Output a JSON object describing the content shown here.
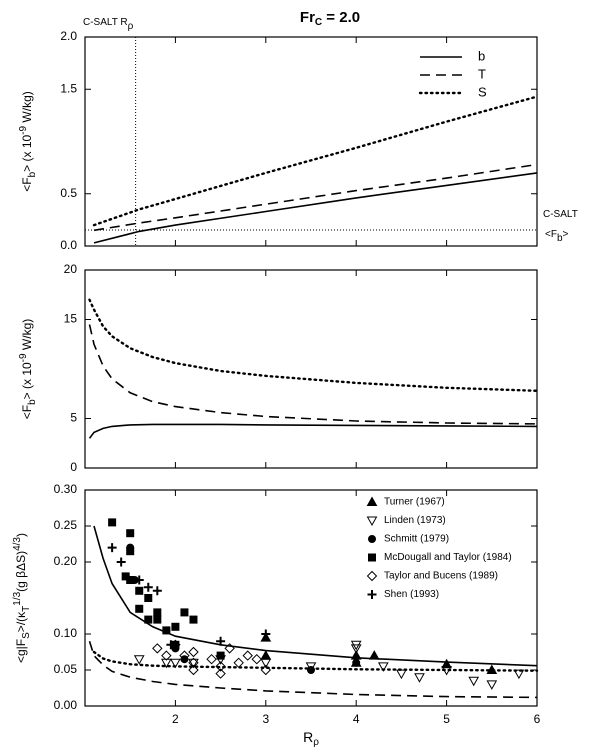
{
  "chart_data": [
    {
      "type": "line",
      "title": [
        {
          "text": "Fr"
        },
        {
          "text": "C",
          "shift": "sub"
        },
        {
          "text": " = 2.0"
        }
      ],
      "ylabel": [
        {
          "text": "<F"
        },
        {
          "text": "b",
          "shift": "sub"
        },
        {
          "text": ">  (x 10"
        },
        {
          "text": "-9",
          "shift": "sup"
        },
        {
          "text": "   W/kg)"
        }
      ],
      "xlim": [
        1,
        6
      ],
      "ylim": [
        0,
        2
      ],
      "yticks": [
        {
          "value": 0,
          "label": "0.0"
        },
        {
          "value": 0.5,
          "label": "0.5"
        },
        {
          "value": 1.5,
          "label": "1.5"
        },
        {
          "value": 2,
          "label": "2.0"
        }
      ],
      "legend": "upper right",
      "grid": false,
      "vline": {
        "x": 1.56,
        "label": [
          {
            "text": "C-SALT R"
          },
          {
            "text": "ρ",
            "shift": "sub"
          }
        ]
      },
      "hline": {
        "y": 0.153,
        "label": [
          {
            "text": "C-SALT"
          }
        ],
        "label2": [
          {
            "text": "<F"
          },
          {
            "text": "b",
            "shift": "sub"
          },
          {
            "text": ">"
          }
        ]
      },
      "x": [
        1.1,
        1.6,
        2,
        3,
        4,
        5,
        6
      ],
      "series": [
        {
          "name": "b",
          "color": "#000000",
          "dash": "solid",
          "values": [
            0.03,
            0.14,
            0.2,
            0.33,
            0.46,
            0.58,
            0.7
          ]
        },
        {
          "name": "T",
          "color": "#000000",
          "dash": "dashed",
          "values": [
            0.15,
            0.22,
            0.27,
            0.4,
            0.53,
            0.65,
            0.78
          ]
        },
        {
          "name": "S",
          "color": "#000000",
          "dash": "dotted",
          "values": [
            0.2,
            0.35,
            0.45,
            0.7,
            0.94,
            1.19,
            1.43
          ]
        }
      ]
    },
    {
      "type": "line",
      "ylabel": [
        {
          "text": "<F"
        },
        {
          "text": "b",
          "shift": "sub"
        },
        {
          "text": ">  (x 10"
        },
        {
          "text": "-9",
          "shift": "sup"
        },
        {
          "text": "   W/kg)"
        }
      ],
      "xlim": [
        1,
        6
      ],
      "ylim": [
        0,
        20
      ],
      "yticks": [
        0,
        5,
        15,
        20
      ],
      "grid": false,
      "x": [
        1.05,
        1.1,
        1.2,
        1.3,
        1.5,
        1.75,
        2,
        2.5,
        3,
        4,
        5,
        6
      ],
      "series": [
        {
          "color": "#000000",
          "dash": "solid",
          "values": [
            3.0,
            3.6,
            4.0,
            4.2,
            4.35,
            4.4,
            4.4,
            4.4,
            4.35,
            4.3,
            4.25,
            4.2
          ]
        },
        {
          "color": "#000000",
          "dash": "dashed",
          "values": [
            14.5,
            12.5,
            10.3,
            9.0,
            7.6,
            6.7,
            6.2,
            5.6,
            5.2,
            4.75,
            4.55,
            4.45
          ]
        },
        {
          "color": "#000000",
          "dash": "dotted",
          "values": [
            17,
            16,
            14.3,
            13.3,
            12.1,
            11.2,
            10.6,
            9.8,
            9.3,
            8.6,
            8.1,
            7.8
          ]
        }
      ]
    },
    {
      "type": "line",
      "ylabel": [
        {
          "text": "<g|F"
        },
        {
          "text": "S",
          "shift": "sub"
        },
        {
          "text": ">/(κ"
        },
        {
          "text": "T",
          "shift": "sub"
        },
        {
          "text": "1/3",
          "shift": "sup"
        },
        {
          "text": "(g βΔS)"
        },
        {
          "text": "4/3",
          "shift": "sup"
        },
        {
          "text": ")"
        }
      ],
      "xlabel": [
        {
          "text": "R"
        },
        {
          "text": "ρ",
          "shift": "sub"
        }
      ],
      "xlim": [
        1,
        6
      ],
      "xticks": [
        2,
        3,
        4,
        5,
        6
      ],
      "ylim": [
        0,
        0.3
      ],
      "yticks": [
        {
          "value": 0,
          "label": "0.00"
        },
        {
          "value": 0.05,
          "label": "0.05"
        },
        {
          "value": 0.1,
          "label": "0.10"
        },
        {
          "value": 0.2,
          "label": "0.20"
        },
        {
          "value": 0.25,
          "label": "0.25"
        },
        {
          "value": 0.3,
          "label": "0.30"
        }
      ],
      "legend": "upper right",
      "grid": false,
      "x": [
        1.05,
        1.1,
        1.2,
        1.3,
        1.5,
        1.75,
        2,
        2.5,
        3,
        4,
        5,
        6
      ],
      "series": [
        {
          "color": "#000000",
          "dash": "solid",
          "values": [
            null,
            0.25,
            0.205,
            0.17,
            0.13,
            0.11,
            0.097,
            0.085,
            0.077,
            0.067,
            0.061,
            0.056
          ]
        },
        {
          "color": "#000000",
          "dash": "dotted",
          "values": [
            null,
            0.075,
            0.066,
            0.062,
            0.058,
            0.056,
            0.055,
            0.054,
            0.053,
            0.051,
            0.05,
            0.049
          ]
        },
        {
          "color": "#000000",
          "dash": "dashed",
          "values": [
            0.09,
            0.07,
            0.057,
            0.048,
            0.04,
            0.034,
            0.03,
            0.025,
            0.021,
            0.016,
            0.013,
            0.012
          ]
        },
        {
          "type": "scatter",
          "name": "Turner (1967)",
          "color": "#000000",
          "marker": "triangle-up",
          "filled": true,
          "x": [
            3.0,
            3.0,
            4.0,
            4.2,
            4.0,
            5.0,
            5.5
          ],
          "values": [
            0.095,
            0.07,
            0.07,
            0.07,
            0.06,
            0.058,
            0.05
          ]
        },
        {
          "type": "scatter",
          "name": "Linden (1973)",
          "color": "#000000",
          "marker": "triangle-down",
          "filled": false,
          "x": [
            1.6,
            1.9,
            2.0,
            2.2,
            2.5,
            3.0,
            3.5,
            4.0,
            4.0,
            4.3,
            4.5,
            4.7,
            5.0,
            5.3,
            5.5,
            5.8
          ],
          "values": [
            0.065,
            0.06,
            0.06,
            0.06,
            0.065,
            0.06,
            0.055,
            0.085,
            0.08,
            0.055,
            0.045,
            0.04,
            0.05,
            0.035,
            0.03,
            0.045
          ]
        },
        {
          "type": "scatter",
          "name": "Schmitt (1979)",
          "color": "#000000",
          "marker": "circle",
          "filled": true,
          "x": [
            1.5,
            1.55,
            1.9,
            2.0,
            2.1,
            3.5,
            4.0
          ],
          "values": [
            0.22,
            0.175,
            0.105,
            0.08,
            0.065,
            0.05,
            0.06
          ]
        },
        {
          "type": "scatter",
          "name": "McDougall and Taylor (1984)",
          "color": "#000000",
          "marker": "square",
          "filled": true,
          "x": [
            1.3,
            1.5,
            1.5,
            1.45,
            1.5,
            1.6,
            1.7,
            1.8,
            1.8,
            1.7,
            1.9,
            2.0,
            2.1,
            2.2,
            1.6,
            2.0,
            2.5
          ],
          "values": [
            0.255,
            0.24,
            0.215,
            0.18,
            0.175,
            0.16,
            0.15,
            0.13,
            0.12,
            0.12,
            0.105,
            0.11,
            0.13,
            0.12,
            0.135,
            0.085,
            0.07
          ]
        },
        {
          "type": "scatter",
          "name": "Taylor and Bucens (1989)",
          "color": "#000000",
          "marker": "diamond",
          "filled": false,
          "x": [
            1.8,
            1.9,
            2.0,
            2.1,
            2.2,
            2.2,
            2.4,
            2.5,
            2.6,
            2.7,
            2.8,
            2.5,
            2.2,
            2.9,
            3.0
          ],
          "values": [
            0.08,
            0.07,
            0.085,
            0.07,
            0.075,
            0.06,
            0.065,
            0.055,
            0.08,
            0.06,
            0.07,
            0.045,
            0.05,
            0.065,
            0.05
          ]
        },
        {
          "type": "scatter",
          "name": "Shen (1993)",
          "color": "#000000",
          "marker": "plus",
          "filled": true,
          "x": [
            1.3,
            1.4,
            1.6,
            1.7,
            1.8,
            2.5,
            3.0,
            1.95
          ],
          "values": [
            0.22,
            0.2,
            0.175,
            0.165,
            0.16,
            0.09,
            0.1,
            0.085
          ]
        }
      ]
    }
  ]
}
